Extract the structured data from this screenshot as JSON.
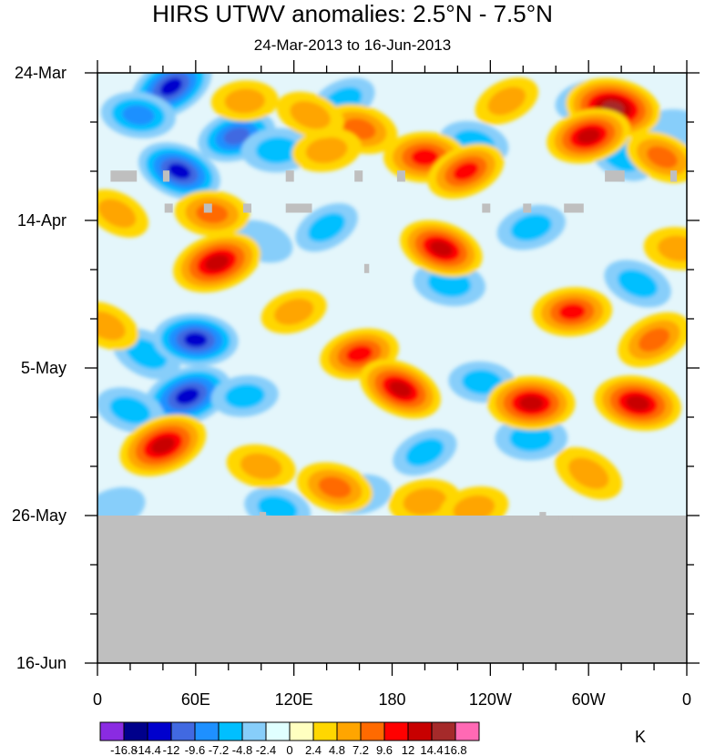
{
  "chart_data": {
    "type": "heatmap",
    "title": "HIRS UTWV anomalies: 2.5°N - 7.5°N",
    "subtitle": "24-Mar-2013 to 16-Jun-2013",
    "x_ticks": [
      "0",
      "60E",
      "120E",
      "180",
      "120W",
      "60W",
      "0"
    ],
    "y_ticks": [
      "24-Mar",
      "14-Apr",
      "5-May",
      "26-May",
      "16-Jun"
    ],
    "xlim": [
      0,
      360
    ],
    "y_days_total": 84,
    "missing_after_day": 63,
    "colorbar_unit": "K",
    "colorbar_labels": [
      "-16.8",
      "-14.4",
      "-12",
      "-9.6",
      "-7.2",
      "-4.8",
      "-2.4",
      "0",
      "2.4",
      "4.8",
      "7.2",
      "9.6",
      "12",
      "14.4",
      "16.8"
    ],
    "colorbar_colors": [
      "#8a2be2",
      "#00008b",
      "#0000cd",
      "#4169e1",
      "#1e90ff",
      "#00bfff",
      "#87cefa",
      "#e0ffff",
      "#ffffc0",
      "#ffd700",
      "#ffa500",
      "#ff6a00",
      "#ff0000",
      "#c80000",
      "#a52a2a",
      "#ff69b4"
    ],
    "missing_color": "#bfbfbf",
    "anomalies": [
      {
        "lon": 45,
        "day": 2,
        "value": -13
      },
      {
        "lon": 25,
        "day": 6,
        "value": -8
      },
      {
        "lon": 85,
        "day": 9,
        "value": -9.6
      },
      {
        "lon": 50,
        "day": 14,
        "value": -12
      },
      {
        "lon": 110,
        "day": 11,
        "value": -7
      },
      {
        "lon": 150,
        "day": 4,
        "value": -5
      },
      {
        "lon": 230,
        "day": 10,
        "value": -6
      },
      {
        "lon": 300,
        "day": 4,
        "value": -5
      },
      {
        "lon": 30,
        "day": 40,
        "value": -7
      },
      {
        "lon": 60,
        "day": 38,
        "value": -12
      },
      {
        "lon": 55,
        "day": 46,
        "value": -14
      },
      {
        "lon": 20,
        "day": 48,
        "value": -6
      },
      {
        "lon": 90,
        "day": 46,
        "value": -5
      },
      {
        "lon": 140,
        "day": 22,
        "value": -5
      },
      {
        "lon": 215,
        "day": 30,
        "value": -7
      },
      {
        "lon": 265,
        "day": 22,
        "value": -6
      },
      {
        "lon": 330,
        "day": 30,
        "value": -6
      },
      {
        "lon": 265,
        "day": 52,
        "value": -7
      },
      {
        "lon": 200,
        "day": 54,
        "value": -5
      },
      {
        "lon": 110,
        "day": 62,
        "value": -5
      },
      {
        "lon": 160,
        "day": 60,
        "value": -4
      },
      {
        "lon": 320,
        "day": 12,
        "value": -5
      },
      {
        "lon": 235,
        "day": 44,
        "value": -5
      },
      {
        "lon": 10,
        "day": 62,
        "value": -4
      },
      {
        "lon": 100,
        "day": 24,
        "value": -4
      },
      {
        "lon": 350,
        "day": 8,
        "value": -4
      },
      {
        "lon": 180,
        "day": 14,
        "value": 2
      },
      {
        "lon": 315,
        "day": 5,
        "value": 16
      },
      {
        "lon": 300,
        "day": 9,
        "value": 12
      },
      {
        "lon": 345,
        "day": 12,
        "value": 8
      },
      {
        "lon": 200,
        "day": 12,
        "value": 11
      },
      {
        "lon": 225,
        "day": 14,
        "value": 10
      },
      {
        "lon": 160,
        "day": 8,
        "value": 9
      },
      {
        "lon": 140,
        "day": 11,
        "value": 6
      },
      {
        "lon": 12,
        "day": 20,
        "value": 5
      },
      {
        "lon": 70,
        "day": 20,
        "value": 8
      },
      {
        "lon": 73,
        "day": 27,
        "value": 14
      },
      {
        "lon": 210,
        "day": 25,
        "value": 12
      },
      {
        "lon": 290,
        "day": 34,
        "value": 10
      },
      {
        "lon": 340,
        "day": 38,
        "value": 9
      },
      {
        "lon": 330,
        "day": 47,
        "value": 13
      },
      {
        "lon": 160,
        "day": 40,
        "value": 10
      },
      {
        "lon": 185,
        "day": 45,
        "value": 12
      },
      {
        "lon": 265,
        "day": 47,
        "value": 13
      },
      {
        "lon": 40,
        "day": 53,
        "value": 14
      },
      {
        "lon": 145,
        "day": 59,
        "value": 9
      },
      {
        "lon": 200,
        "day": 61,
        "value": 7
      },
      {
        "lon": 300,
        "day": 57,
        "value": 7
      },
      {
        "lon": 355,
        "day": 25,
        "value": 6
      },
      {
        "lon": 120,
        "day": 34,
        "value": 5
      },
      {
        "lon": 130,
        "day": 6,
        "value": 6
      },
      {
        "lon": 90,
        "day": 4,
        "value": 5
      },
      {
        "lon": 250,
        "day": 4,
        "value": 5
      },
      {
        "lon": 100,
        "day": 56,
        "value": 6
      },
      {
        "lon": 230,
        "day": 62,
        "value": 6
      },
      {
        "lon": 5,
        "day": 36,
        "value": 6
      }
    ],
    "missing_patches": [
      {
        "lon": 8,
        "day": 13.9,
        "dlon": 16,
        "dday": 1.6
      },
      {
        "lon": 40,
        "day": 13.9,
        "dlon": 4,
        "dday": 1.6
      },
      {
        "lon": 115,
        "day": 13.9,
        "dlon": 5,
        "dday": 1.6
      },
      {
        "lon": 157,
        "day": 13.9,
        "dlon": 5,
        "dday": 1.6
      },
      {
        "lon": 183,
        "day": 13.9,
        "dlon": 5,
        "dday": 1.6
      },
      {
        "lon": 310,
        "day": 13.9,
        "dlon": 12,
        "dday": 1.6
      },
      {
        "lon": 350,
        "day": 13.9,
        "dlon": 4,
        "dday": 1.6
      },
      {
        "lon": 41,
        "day": 18.6,
        "dlon": 5,
        "dday": 1.3
      },
      {
        "lon": 65,
        "day": 18.6,
        "dlon": 5,
        "dday": 1.3
      },
      {
        "lon": 89,
        "day": 18.6,
        "dlon": 5,
        "dday": 1.3
      },
      {
        "lon": 115,
        "day": 18.6,
        "dlon": 16,
        "dday": 1.3
      },
      {
        "lon": 235,
        "day": 18.6,
        "dlon": 5,
        "dday": 1.3
      },
      {
        "lon": 260,
        "day": 18.6,
        "dlon": 5,
        "dday": 1.3
      },
      {
        "lon": 285,
        "day": 18.6,
        "dlon": 12,
        "dday": 1.3
      },
      {
        "lon": 163,
        "day": 27.2,
        "dlon": 3,
        "dday": 1.3
      },
      {
        "lon": 80,
        "day": 63,
        "dlon": 12,
        "dday": 0.7
      },
      {
        "lon": 99,
        "day": 62.5,
        "dlon": 4,
        "dday": 1
      },
      {
        "lon": 124,
        "day": 63,
        "dlon": 12,
        "dday": 0.7
      },
      {
        "lon": 247,
        "day": 63,
        "dlon": 12,
        "dday": 0.7
      },
      {
        "lon": 270,
        "day": 62.5,
        "dlon": 4,
        "dday": 1
      },
      {
        "lon": 282,
        "day": 63,
        "dlon": 8,
        "dday": 0.7
      }
    ]
  }
}
